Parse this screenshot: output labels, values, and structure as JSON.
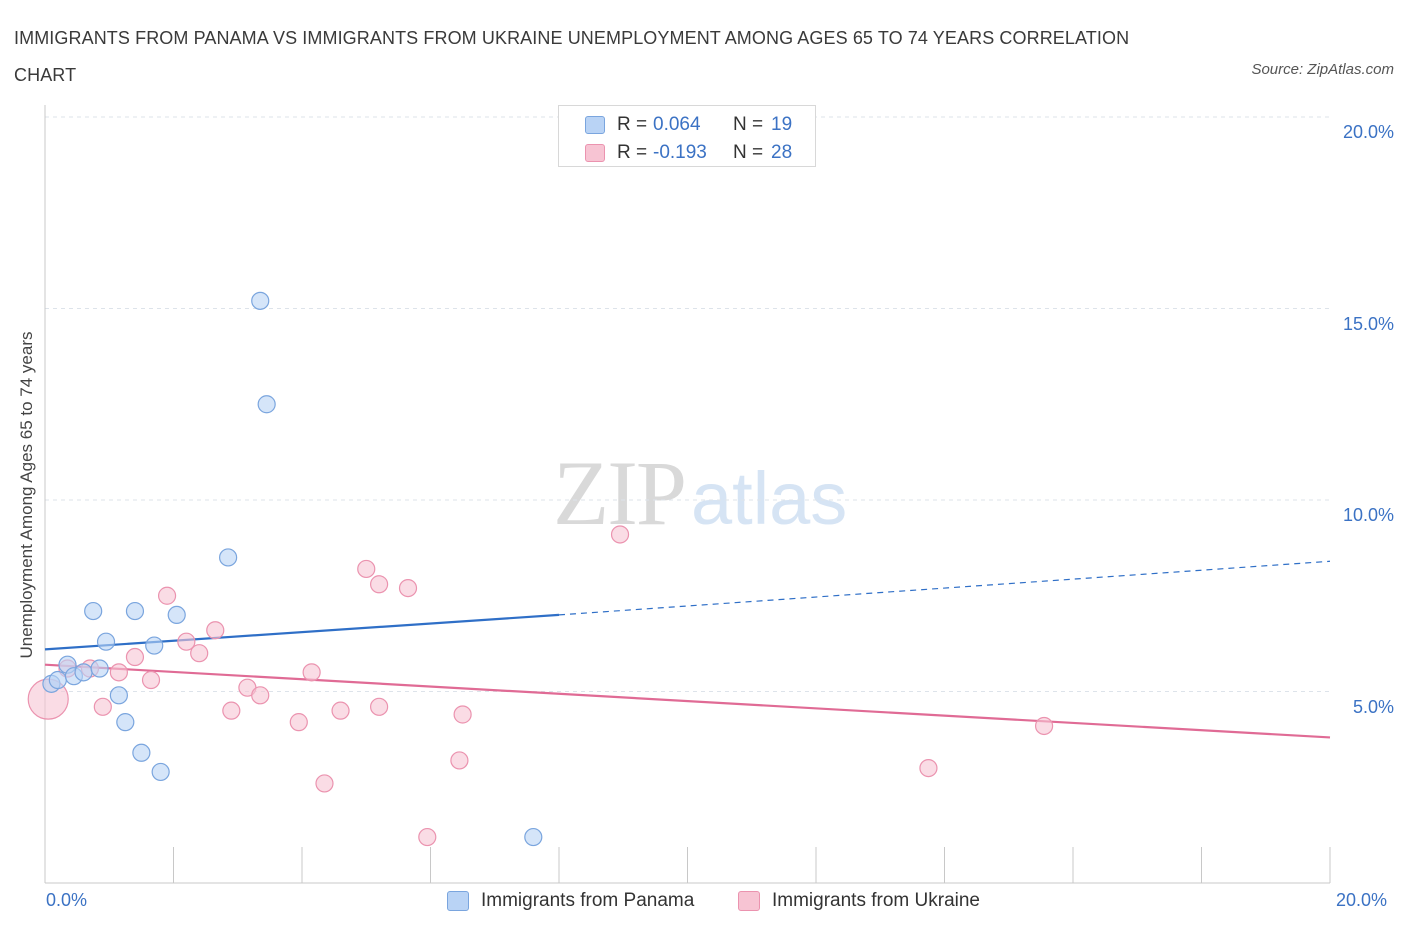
{
  "title": "IMMIGRANTS FROM PANAMA VS IMMIGRANTS FROM UKRAINE UNEMPLOYMENT AMONG AGES 65 TO 74 YEARS CORRELATION CHART",
  "source": "Source: ZipAtlas.com",
  "watermark": {
    "zip": "ZIP",
    "atlas": "atlas"
  },
  "colors": {
    "panama_fill": "#b9d3f5",
    "panama_stroke": "#7aa5de",
    "panama_line": "#2f6fc7",
    "ukraine_fill": "#f7c4d3",
    "ukraine_stroke": "#eb93af",
    "ukraine_line": "#e06b95",
    "tick_label": "#3b72c4",
    "grid": "#dde3ea"
  },
  "legend_top": {
    "rows": [
      {
        "r_label": "R =",
        "r_value": "0.064",
        "n_label": "N =",
        "n_value": "19"
      },
      {
        "r_label": "R =",
        "r_value": "-0.193",
        "n_label": "N =",
        "n_value": "28"
      }
    ]
  },
  "chart_data": {
    "type": "scatter",
    "title": "IMMIGRANTS FROM PANAMA VS IMMIGRANTS FROM UKRAINE UNEMPLOYMENT AMONG AGES 65 TO 74 YEARS CORRELATION CHART",
    "xlabel": "",
    "ylabel": "Unemployment Among Ages 65 to 74 years",
    "xlim": [
      0,
      20
    ],
    "ylim": [
      0,
      20
    ],
    "x_tick_labels": [
      "0.0%",
      "20.0%"
    ],
    "y_tick_labels": [
      "5.0%",
      "10.0%",
      "15.0%",
      "20.0%"
    ],
    "y_tick_values": [
      5,
      10,
      15,
      20
    ],
    "grid": true,
    "legend_position": "bottom-center",
    "series": [
      {
        "name": "Immigrants from Panama",
        "R": 0.064,
        "N": 19,
        "points": [
          [
            0.1,
            5.2
          ],
          [
            0.2,
            5.3
          ],
          [
            0.35,
            5.7
          ],
          [
            0.45,
            5.4
          ],
          [
            0.6,
            5.5
          ],
          [
            0.75,
            7.1
          ],
          [
            0.85,
            5.6
          ],
          [
            0.95,
            6.3
          ],
          [
            1.15,
            4.9
          ],
          [
            1.25,
            4.2
          ],
          [
            1.4,
            7.1
          ],
          [
            1.5,
            3.4
          ],
          [
            1.7,
            6.2
          ],
          [
            1.8,
            2.9
          ],
          [
            2.05,
            7.0
          ],
          [
            2.85,
            8.5
          ],
          [
            3.35,
            15.2
          ],
          [
            3.45,
            12.5
          ],
          [
            7.6,
            1.2
          ]
        ],
        "trend": {
          "x0": 0,
          "y0": 6.1,
          "x1": 8.0,
          "y1": 7.0,
          "dash_x1": 20,
          "dash_y1": 8.4
        }
      },
      {
        "name": "Immigrants from Ukraine",
        "R": -0.193,
        "N": 28,
        "points": [
          [
            0.05,
            4.8
          ],
          [
            0.35,
            5.6
          ],
          [
            0.7,
            5.6
          ],
          [
            0.9,
            4.6
          ],
          [
            1.15,
            5.5
          ],
          [
            1.4,
            5.9
          ],
          [
            1.65,
            5.3
          ],
          [
            1.9,
            7.5
          ],
          [
            2.2,
            6.3
          ],
          [
            2.4,
            6.0
          ],
          [
            2.65,
            6.6
          ],
          [
            2.9,
            4.5
          ],
          [
            3.15,
            5.1
          ],
          [
            3.35,
            4.9
          ],
          [
            3.95,
            4.2
          ],
          [
            4.15,
            5.5
          ],
          [
            4.35,
            2.6
          ],
          [
            4.6,
            4.5
          ],
          [
            5.0,
            8.2
          ],
          [
            5.2,
            7.8
          ],
          [
            5.2,
            4.6
          ],
          [
            5.65,
            7.7
          ],
          [
            5.95,
            1.2
          ],
          [
            6.45,
            3.2
          ],
          [
            6.5,
            4.4
          ],
          [
            8.95,
            9.1
          ],
          [
            13.75,
            3.0
          ],
          [
            15.55,
            4.1
          ]
        ],
        "trend": {
          "x0": 0,
          "y0": 5.7,
          "x1": 20,
          "y1": 3.8
        }
      }
    ]
  }
}
